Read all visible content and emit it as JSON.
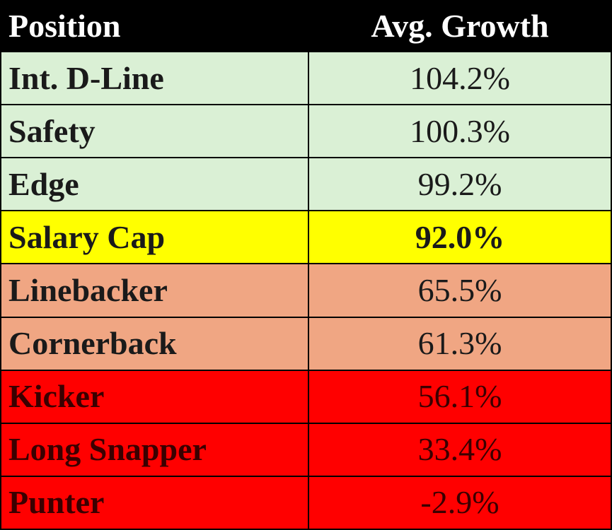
{
  "table": {
    "header": [
      "Position",
      "Avg. Growth"
    ],
    "rows": [
      [
        "Int. D-Line",
        "104.2%"
      ],
      [
        "Safety",
        "100.3%"
      ],
      [
        "Edge",
        "99.2%"
      ],
      [
        "Salary Cap",
        "92.0%"
      ],
      [
        "Linebacker",
        "65.5%"
      ],
      [
        "Cornerback",
        "61.3%"
      ],
      [
        "Kicker",
        "56.1%"
      ],
      [
        "Long Snapper",
        "33.4%"
      ],
      [
        "Punter",
        "-2.9%"
      ]
    ]
  }
}
